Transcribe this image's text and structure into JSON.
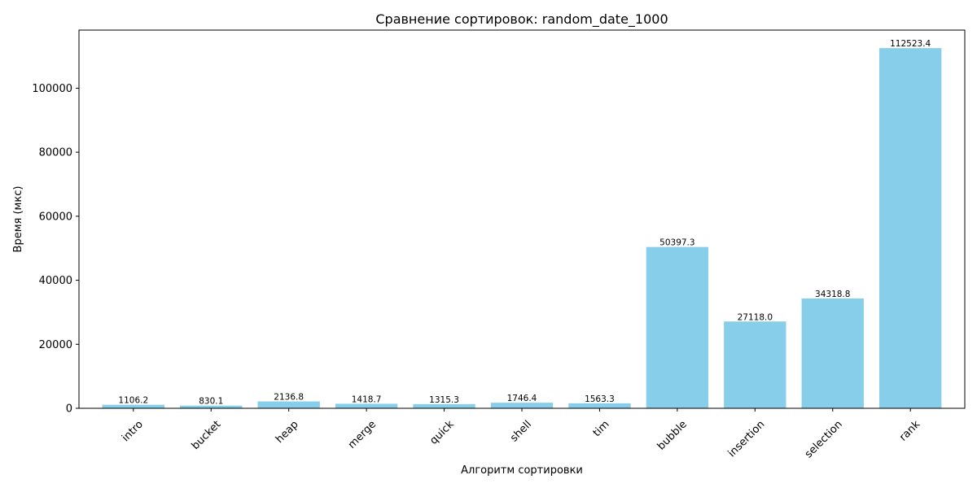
{
  "chart_data": {
    "type": "bar",
    "title": "Сравнение сортировок: random_date_1000",
    "xlabel": "Алгоритм сортировки",
    "ylabel": "Время (мкс)",
    "categories": [
      "intro",
      "bucket",
      "heap",
      "merge",
      "quick",
      "shell",
      "tim",
      "bubble",
      "insertion",
      "selection",
      "rank"
    ],
    "values": [
      1106.2,
      830.1,
      2136.8,
      1418.7,
      1315.3,
      1746.4,
      1563.3,
      50397.3,
      27118.0,
      34318.8,
      112523.4
    ],
    "value_labels": [
      "1106.2",
      "830.1",
      "2136.8",
      "1418.7",
      "1315.3",
      "1746.4",
      "1563.3",
      "50397.3",
      "27118.0",
      "34318.8",
      "112523.4"
    ],
    "yticks": [
      0,
      20000,
      40000,
      60000,
      80000,
      100000
    ],
    "ytick_labels": [
      "0",
      "20000",
      "40000",
      "60000",
      "80000",
      "100000"
    ],
    "ylim": [
      0,
      118149.57
    ],
    "bar_color": "#87CEEB",
    "grid": false,
    "legend": "none",
    "xtick_rotation": 45
  }
}
